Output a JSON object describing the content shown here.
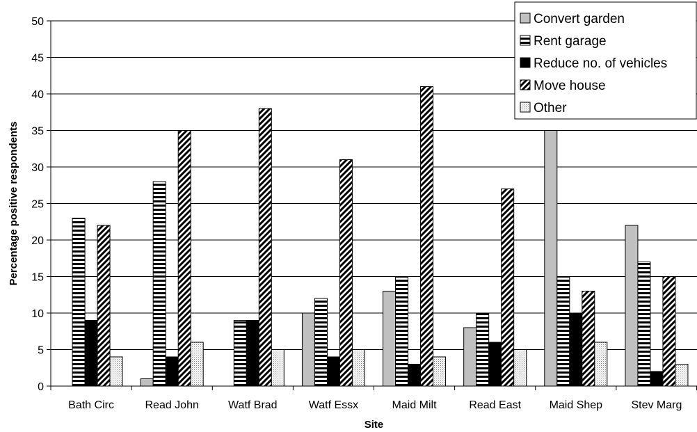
{
  "chart_data": {
    "type": "bar",
    "title": "",
    "xlabel": "Site",
    "ylabel": "Percentage positive respondents",
    "ylim": [
      0,
      50
    ],
    "yticks": [
      0,
      5,
      10,
      15,
      20,
      25,
      30,
      35,
      40,
      45,
      50
    ],
    "grid": true,
    "legend_position": "top-right",
    "categories": [
      "Bath Circ",
      "Read John",
      "Watf Brad",
      "Watf Essx",
      "Maid Milt",
      "Read East",
      "Maid Shep",
      "Stev Marg"
    ],
    "series": [
      {
        "name": "Convert garden",
        "pattern": "solid-gray",
        "color": "#c0c0c0",
        "values": [
          0,
          1,
          0,
          10,
          13,
          8,
          35,
          22
        ]
      },
      {
        "name": "Rent garage",
        "pattern": "horizontal-stripes",
        "color": "#000000",
        "values": [
          23,
          28,
          9,
          12,
          15,
          10,
          15,
          17
        ]
      },
      {
        "name": "Reduce no. of vehicles",
        "pattern": "solid-black",
        "color": "#000000",
        "values": [
          9,
          4,
          9,
          4,
          3,
          6,
          10,
          2
        ]
      },
      {
        "name": "Move house",
        "pattern": "diagonal-stripes",
        "color": "#000000",
        "values": [
          22,
          35,
          38,
          31,
          41,
          27,
          13,
          15
        ]
      },
      {
        "name": "Other",
        "pattern": "dotted",
        "color": "#999999",
        "values": [
          4,
          6,
          5,
          5,
          4,
          5,
          6,
          3
        ]
      }
    ]
  }
}
